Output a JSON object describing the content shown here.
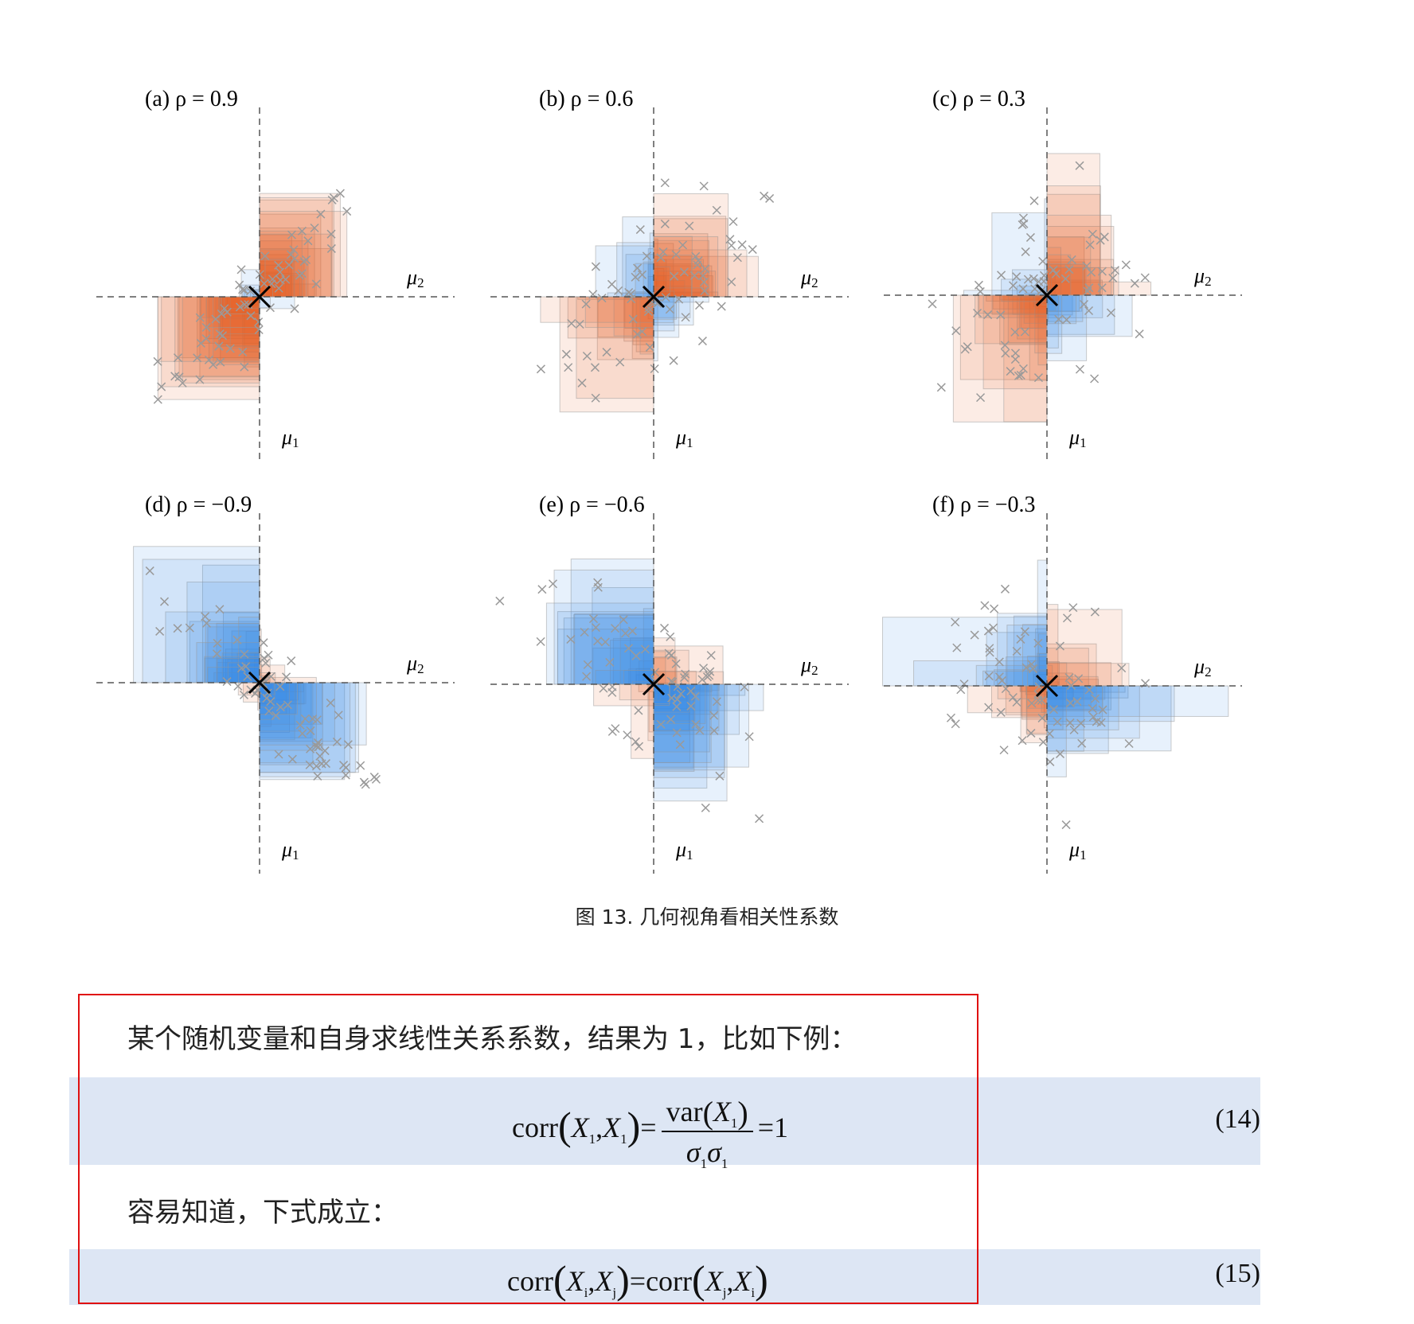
{
  "figure": {
    "panels": [
      {
        "title": "(a) ρ = 0.9",
        "rho": 0.9,
        "xlabel": "μ",
        "xlabel_sub": "1",
        "ylabel": "μ",
        "ylabel_sub": "2"
      },
      {
        "title": "(b) ρ = 0.6",
        "rho": 0.6,
        "xlabel": "μ",
        "xlabel_sub": "1",
        "ylabel": "μ",
        "ylabel_sub": "2"
      },
      {
        "title": "(c) ρ = 0.3",
        "rho": 0.3,
        "xlabel": "μ",
        "xlabel_sub": "1",
        "ylabel": "μ",
        "ylabel_sub": "2"
      },
      {
        "title": "(d) ρ = −0.9",
        "rho": -0.9,
        "xlabel": "μ",
        "xlabel_sub": "1",
        "ylabel": "μ",
        "ylabel_sub": "2"
      },
      {
        "title": "(e) ρ = −0.6",
        "rho": -0.6,
        "xlabel": "μ",
        "xlabel_sub": "1",
        "ylabel": "μ",
        "ylabel_sub": "2"
      },
      {
        "title": "(f) ρ = −0.3",
        "rho": -0.3,
        "xlabel": "μ",
        "xlabel_sub": "1",
        "ylabel": "μ",
        "ylabel_sub": "2"
      }
    ],
    "colors": {
      "positive": "#e8622c",
      "negative": "#3b8ae6",
      "marker": "#9a9a9a",
      "center": "#000000"
    },
    "caption": "图 13. 几何视角看相关性系数"
  },
  "text": {
    "para1": "某个随机变量和自身求线性关系系数，结果为 1，比如下例：",
    "para2": "容易知道，下式成立："
  },
  "eq14": {
    "corr": "corr",
    "X": "X",
    "sub1": "1",
    "comma": ",",
    "equals": "=",
    "var": "var",
    "sigma": "σ",
    "one": "1",
    "number": "(14)"
  },
  "eq15": {
    "corr": "corr",
    "X": "X",
    "i": "i",
    "j": "j",
    "comma": ",",
    "equals": "=",
    "number": "(15)"
  }
}
